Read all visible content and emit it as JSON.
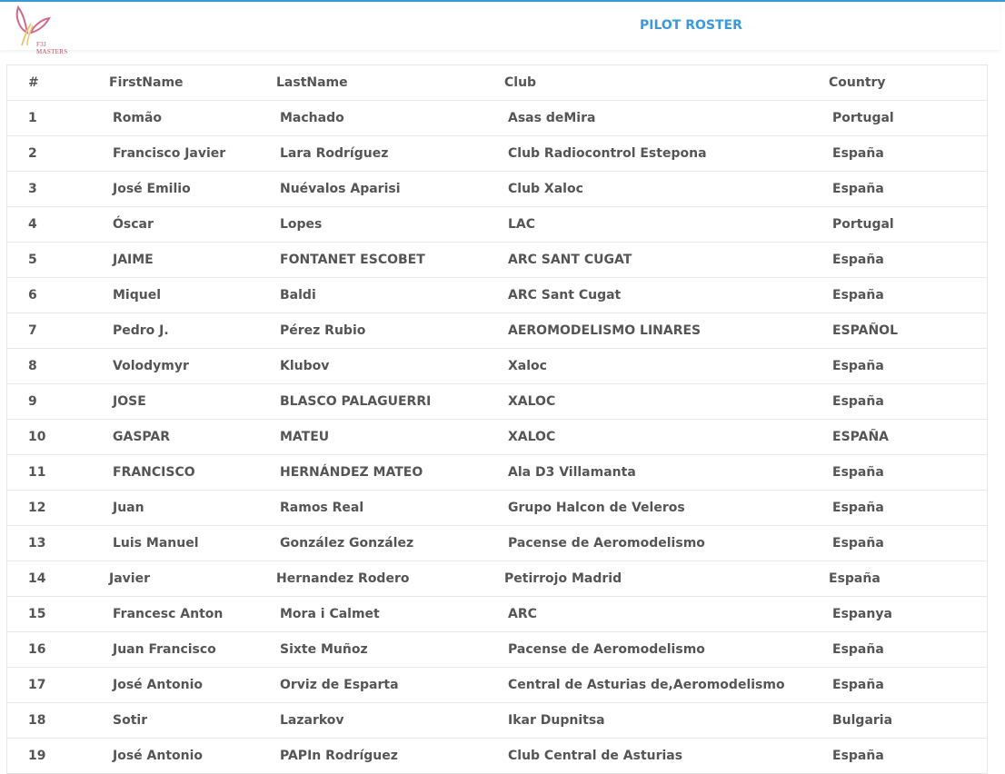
{
  "header": {
    "logo_text": "F3J MASTERS",
    "title": "PILOT ROSTER"
  },
  "colors": {
    "accent": "#3a9ad9",
    "text": "#555555",
    "logo": "#c0506a"
  },
  "table": {
    "columns": [
      "#",
      "FirstName",
      "LastName",
      "Club",
      "Country"
    ],
    "rows": [
      [
        "1",
        "Romão",
        "Machado",
        "Asas deMira",
        "Portugal"
      ],
      [
        "2",
        "Francisco Javier",
        "Lara Rodríguez",
        "Club Radiocontrol Estepona",
        "España"
      ],
      [
        "3",
        "José Emilio",
        "Nuévalos Aparisi",
        "Club Xaloc",
        "España"
      ],
      [
        "4",
        "Óscar",
        "Lopes",
        "LAC",
        "Portugal"
      ],
      [
        "5",
        "JAIME",
        "FONTANET ESCOBET",
        "ARC SANT CUGAT",
        "España"
      ],
      [
        "6",
        "Miquel",
        "Baldi",
        "ARC Sant Cugat",
        "España"
      ],
      [
        "7",
        "Pedro J.",
        "Pérez Rubio",
        "AEROMODELISMO LINARES",
        "ESPAÑOL"
      ],
      [
        "8",
        "Volodymyr",
        "Klubov",
        "Xaloc",
        "España"
      ],
      [
        "9",
        "JOSE",
        "BLASCO PALAGUERRI",
        "XALOC",
        "España"
      ],
      [
        "10",
        "GASPAR",
        "MATEU",
        "XALOC",
        "ESPAÑA"
      ],
      [
        "11",
        "FRANCISCO",
        "HERNÁNDEZ MATEO",
        "Ala D3 Villamanta",
        "España"
      ],
      [
        "12",
        "Juan",
        "Ramos Real",
        "Grupo Halcon de Veleros",
        "España"
      ],
      [
        "13",
        "Luis Manuel",
        "González González",
        "Pacense de Aeromodelismo",
        "España"
      ],
      [
        "14",
        "Javier",
        "Hernandez Rodero",
        "Petirrojo Madrid",
        "España"
      ],
      [
        "15",
        "Francesc Anton",
        "Mora i Calmet",
        "ARC",
        "Espanya"
      ],
      [
        "16",
        "Juan Francisco",
        "Sixte Muñoz",
        "Pacense de Aeromodelismo",
        "España"
      ],
      [
        "17",
        "José Antonio",
        "Orviz de Esparta",
        "Central de Asturias de,Aeromodelismo",
        "España"
      ],
      [
        "18",
        "Sotir",
        "Lazarkov",
        "Ikar Dupnitsa",
        "Bulgaria"
      ],
      [
        "19",
        "José Antonio",
        "PAPIn Rodríguez",
        "Club Central de Asturias",
        "España"
      ]
    ]
  }
}
